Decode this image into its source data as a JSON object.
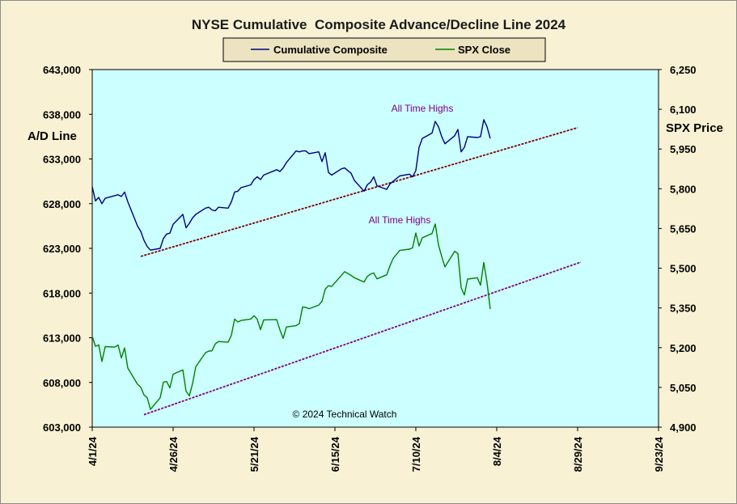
{
  "chart_data": {
    "type": "line",
    "title": "NYSE Cumulative  Composite Advance/Decline Line 2024",
    "legend": {
      "placement": "top-center",
      "items": [
        "Cumulative Composite",
        "SPX Close"
      ]
    },
    "y_left": {
      "label": "A/D Line",
      "range": [
        603000,
        643000
      ],
      "ticks": [
        "603,000",
        "608,000",
        "613,000",
        "618,000",
        "623,000",
        "628,000",
        "633,000",
        "638,000",
        "643,000"
      ]
    },
    "y_right": {
      "label": "SPX Price",
      "range": [
        4900,
        6250
      ],
      "ticks": [
        "4,900",
        "5,050",
        "5,200",
        "5,350",
        "5,500",
        "5,650",
        "5,800",
        "5,950",
        "6,100",
        "6,250"
      ]
    },
    "x_axis": {
      "range": [
        "2024-04-01",
        "2024-09-23"
      ],
      "ticks": [
        "4/1/24",
        "4/26/24",
        "5/21/24",
        "6/15/24",
        "7/10/24",
        "8/4/24",
        "8/29/24",
        "9/23/24"
      ]
    },
    "grid": false,
    "plot_background": "#ccffff",
    "series": [
      {
        "name": "Cumulative Composite",
        "axis": "left",
        "color": "#000080",
        "points": [
          [
            "2024-04-01",
            629900
          ],
          [
            "2024-04-02",
            628300
          ],
          [
            "2024-04-03",
            628700
          ],
          [
            "2024-04-04",
            628000
          ],
          [
            "2024-04-05",
            628600
          ],
          [
            "2024-04-08",
            628900
          ],
          [
            "2024-04-09",
            629000
          ],
          [
            "2024-04-10",
            628800
          ],
          [
            "2024-04-11",
            629300
          ],
          [
            "2024-04-12",
            628200
          ],
          [
            "2024-04-15",
            625500
          ],
          [
            "2024-04-16",
            624900
          ],
          [
            "2024-04-17",
            623900
          ],
          [
            "2024-04-18",
            623200
          ],
          [
            "2024-04-19",
            622800
          ],
          [
            "2024-04-22",
            623000
          ],
          [
            "2024-04-23",
            624100
          ],
          [
            "2024-04-24",
            624600
          ],
          [
            "2024-04-25",
            624700
          ],
          [
            "2024-04-26",
            625700
          ],
          [
            "2024-04-29",
            626800
          ],
          [
            "2024-04-30",
            625300
          ],
          [
            "2024-05-01",
            625800
          ],
          [
            "2024-05-02",
            626400
          ],
          [
            "2024-05-03",
            626800
          ],
          [
            "2024-05-06",
            627500
          ],
          [
            "2024-05-07",
            627600
          ],
          [
            "2024-05-08",
            627300
          ],
          [
            "2024-05-09",
            627200
          ],
          [
            "2024-05-10",
            627600
          ],
          [
            "2024-05-13",
            627500
          ],
          [
            "2024-05-14",
            628200
          ],
          [
            "2024-05-15",
            629300
          ],
          [
            "2024-05-16",
            629400
          ],
          [
            "2024-05-17",
            629800
          ],
          [
            "2024-05-20",
            630100
          ],
          [
            "2024-05-21",
            630700
          ],
          [
            "2024-05-22",
            631000
          ],
          [
            "2024-05-23",
            630700
          ],
          [
            "2024-05-24",
            631200
          ],
          [
            "2024-05-28",
            631800
          ],
          [
            "2024-05-29",
            631600
          ],
          [
            "2024-05-30",
            632000
          ],
          [
            "2024-05-31",
            632600
          ],
          [
            "2024-06-03",
            633900
          ],
          [
            "2024-06-04",
            633800
          ],
          [
            "2024-06-05",
            633900
          ],
          [
            "2024-06-06",
            633900
          ],
          [
            "2024-06-07",
            633600
          ],
          [
            "2024-06-10",
            633800
          ],
          [
            "2024-06-11",
            632700
          ],
          [
            "2024-06-12",
            633700
          ],
          [
            "2024-06-13",
            631500
          ],
          [
            "2024-06-14",
            631200
          ],
          [
            "2024-06-17",
            631900
          ],
          [
            "2024-06-18",
            632000
          ],
          [
            "2024-06-20",
            631400
          ],
          [
            "2024-06-21",
            630600
          ],
          [
            "2024-06-24",
            629400
          ],
          [
            "2024-06-25",
            630100
          ],
          [
            "2024-06-26",
            630400
          ],
          [
            "2024-06-27",
            631000
          ],
          [
            "2024-06-28",
            630000
          ],
          [
            "2024-07-01",
            629600
          ],
          [
            "2024-07-02",
            630200
          ],
          [
            "2024-07-03",
            630500
          ],
          [
            "2024-07-05",
            631100
          ],
          [
            "2024-07-08",
            631300
          ],
          [
            "2024-07-09",
            631000
          ],
          [
            "2024-07-10",
            631700
          ],
          [
            "2024-07-11",
            634300
          ],
          [
            "2024-07-12",
            635300
          ],
          [
            "2024-07-15",
            635900
          ],
          [
            "2024-07-16",
            637200
          ],
          [
            "2024-07-17",
            636600
          ],
          [
            "2024-07-18",
            635500
          ],
          [
            "2024-07-19",
            634700
          ],
          [
            "2024-07-22",
            635600
          ],
          [
            "2024-07-23",
            636300
          ],
          [
            "2024-07-24",
            633800
          ],
          [
            "2024-07-25",
            634300
          ],
          [
            "2024-07-26",
            635500
          ],
          [
            "2024-07-29",
            635400
          ],
          [
            "2024-07-30",
            635500
          ],
          [
            "2024-07-31",
            637400
          ],
          [
            "2024-08-01",
            636600
          ],
          [
            "2024-08-02",
            635300
          ]
        ]
      },
      {
        "name": "SPX Close",
        "axis": "right",
        "color": "#008000",
        "points": [
          [
            "2024-04-01",
            5243
          ],
          [
            "2024-04-02",
            5205
          ],
          [
            "2024-04-03",
            5211
          ],
          [
            "2024-04-04",
            5148
          ],
          [
            "2024-04-05",
            5204
          ],
          [
            "2024-04-08",
            5202
          ],
          [
            "2024-04-09",
            5210
          ],
          [
            "2024-04-10",
            5161
          ],
          [
            "2024-04-11",
            5199
          ],
          [
            "2024-04-12",
            5123
          ],
          [
            "2024-04-15",
            5062
          ],
          [
            "2024-04-16",
            5051
          ],
          [
            "2024-04-17",
            5022
          ],
          [
            "2024-04-18",
            5011
          ],
          [
            "2024-04-19",
            4967
          ],
          [
            "2024-04-22",
            5011
          ],
          [
            "2024-04-23",
            5070
          ],
          [
            "2024-04-24",
            5072
          ],
          [
            "2024-04-25",
            5048
          ],
          [
            "2024-04-26",
            5100
          ],
          [
            "2024-04-29",
            5116
          ],
          [
            "2024-04-30",
            5036
          ],
          [
            "2024-05-01",
            5018
          ],
          [
            "2024-05-02",
            5064
          ],
          [
            "2024-05-03",
            5128
          ],
          [
            "2024-05-06",
            5181
          ],
          [
            "2024-05-07",
            5187
          ],
          [
            "2024-05-08",
            5188
          ],
          [
            "2024-05-09",
            5214
          ],
          [
            "2024-05-10",
            5223
          ],
          [
            "2024-05-13",
            5221
          ],
          [
            "2024-05-14",
            5247
          ],
          [
            "2024-05-15",
            5308
          ],
          [
            "2024-05-16",
            5297
          ],
          [
            "2024-05-17",
            5303
          ],
          [
            "2024-05-20",
            5308
          ],
          [
            "2024-05-21",
            5321
          ],
          [
            "2024-05-22",
            5307
          ],
          [
            "2024-05-23",
            5268
          ],
          [
            "2024-05-24",
            5305
          ],
          [
            "2024-05-28",
            5306
          ],
          [
            "2024-05-29",
            5267
          ],
          [
            "2024-05-30",
            5235
          ],
          [
            "2024-05-31",
            5278
          ],
          [
            "2024-06-03",
            5283
          ],
          [
            "2024-06-04",
            5291
          ],
          [
            "2024-06-05",
            5354
          ],
          [
            "2024-06-06",
            5352
          ],
          [
            "2024-06-07",
            5347
          ],
          [
            "2024-06-10",
            5361
          ],
          [
            "2024-06-11",
            5375
          ],
          [
            "2024-06-12",
            5421
          ],
          [
            "2024-06-13",
            5434
          ],
          [
            "2024-06-14",
            5431
          ],
          [
            "2024-06-17",
            5473
          ],
          [
            "2024-06-18",
            5487
          ],
          [
            "2024-06-20",
            5473
          ],
          [
            "2024-06-21",
            5464
          ],
          [
            "2024-06-24",
            5448
          ],
          [
            "2024-06-25",
            5469
          ],
          [
            "2024-06-26",
            5478
          ],
          [
            "2024-06-27",
            5482
          ],
          [
            "2024-06-28",
            5460
          ],
          [
            "2024-07-01",
            5475
          ],
          [
            "2024-07-02",
            5509
          ],
          [
            "2024-07-03",
            5537
          ],
          [
            "2024-07-05",
            5567
          ],
          [
            "2024-07-08",
            5572
          ],
          [
            "2024-07-09",
            5577
          ],
          [
            "2024-07-10",
            5633
          ],
          [
            "2024-07-11",
            5584
          ],
          [
            "2024-07-12",
            5615
          ],
          [
            "2024-07-15",
            5631
          ],
          [
            "2024-07-16",
            5667
          ],
          [
            "2024-07-17",
            5588
          ],
          [
            "2024-07-18",
            5544
          ],
          [
            "2024-07-19",
            5505
          ],
          [
            "2024-07-22",
            5564
          ],
          [
            "2024-07-23",
            5555
          ],
          [
            "2024-07-24",
            5427
          ],
          [
            "2024-07-25",
            5399
          ],
          [
            "2024-07-26",
            5459
          ],
          [
            "2024-07-29",
            5464
          ],
          [
            "2024-07-30",
            5436
          ],
          [
            "2024-07-31",
            5522
          ],
          [
            "2024-08-01",
            5446
          ],
          [
            "2024-08-02",
            5346
          ]
        ]
      }
    ],
    "trend_lines": [
      {
        "axis": "left",
        "color": "#800000",
        "from": [
          "2024-04-16",
          622100
        ],
        "to": [
          "2024-08-29",
          636500
        ]
      },
      {
        "axis": "right",
        "color": "#800080",
        "from": [
          "2024-04-17",
          4947
        ],
        "to": [
          "2024-08-30",
          5523
        ]
      }
    ],
    "annotations": [
      {
        "text": "All Time Highs",
        "axis": "left",
        "x": "2024-07-12",
        "y": 638300,
        "color": "#800080"
      },
      {
        "text": "All Time Highs",
        "axis": "right",
        "x": "2024-07-05",
        "y": 5670,
        "color": "#800080"
      },
      {
        "text": "© 2024 Technical  Watch",
        "axis": "left",
        "x": "2024-06-18",
        "y": 604100,
        "color": "#000000"
      }
    ]
  }
}
